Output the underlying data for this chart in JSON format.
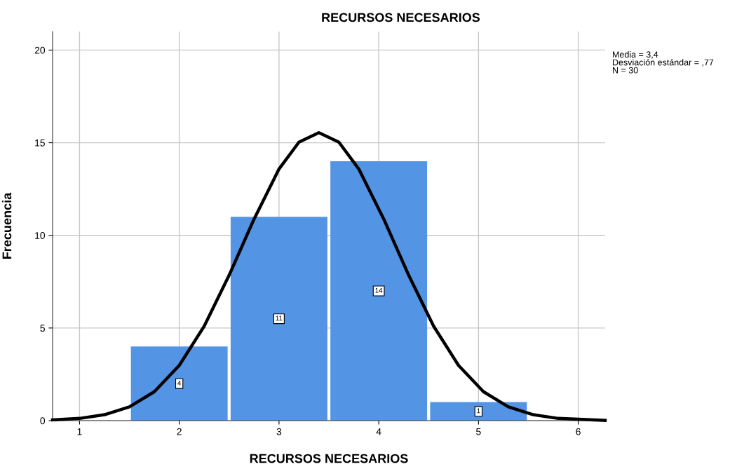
{
  "chart_data": {
    "type": "histogram",
    "title": "RECURSOS NECESARIOS",
    "xlabel": "RECURSOS NECESARIOS",
    "ylabel": "Frecuencia",
    "annotations": [
      "Media = 3,4\nDesviación estándar = ,77\nN = 30"
    ],
    "series": [
      {
        "bins": [
          1.5,
          2.5,
          3.5,
          4.5,
          5.5
        ],
        "values": [
          4,
          11,
          14,
          1
        ],
        "color": "#5494e4",
        "data_labels": true
      },
      {
        "type": "line",
        "color": "#000000",
        "x": [
          0.73,
          1,
          1.25,
          1.5,
          1.75,
          2,
          2.25,
          2.5,
          2.75,
          3,
          3.2,
          3.4,
          3.6,
          3.8,
          4.05,
          4.3,
          4.55,
          4.8,
          5.05,
          5.3,
          5.55,
          5.8,
          6.27
        ],
        "values": [
          0.04,
          0.12,
          0.32,
          0.74,
          1.56,
          2.98,
          5.1,
          7.85,
          10.88,
          13.58,
          15.03,
          15.54,
          15.03,
          13.58,
          10.88,
          7.85,
          5.1,
          2.98,
          1.56,
          0.74,
          0.32,
          0.12,
          0.01
        ]
      }
    ],
    "xlim": [
      0.73,
      6.27
    ],
    "ylim": [
      0,
      21
    ],
    "xticks": [
      1,
      2,
      3,
      4,
      5,
      6
    ],
    "yticks": [
      0,
      5,
      10,
      15,
      20
    ],
    "grid": true,
    "legend": false,
    "marker": "none",
    "line_style": "solid"
  }
}
